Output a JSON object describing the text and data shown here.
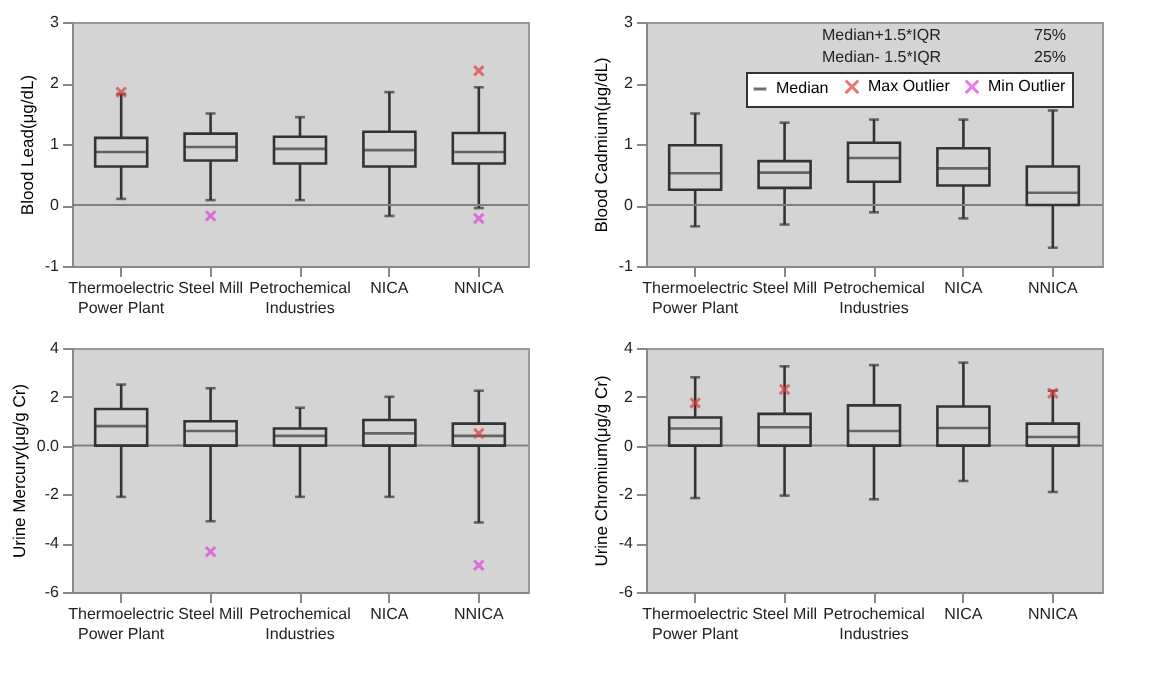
{
  "chart_data": [
    {
      "type": "box",
      "ylabel": "Blood Lead(μg/dL)",
      "categories": [
        "Thermoelectric Power Plant",
        "Steel Mill",
        "Petrochemical Industries",
        "NICA",
        "NNICA"
      ],
      "ylim": [
        -1,
        3
      ],
      "yticks": [
        -1,
        0,
        1,
        2,
        3
      ],
      "grid": false,
      "legend": false,
      "ref_lines": [
        {
          "axis": "y",
          "value": 0,
          "color": "#808080"
        }
      ],
      "series": [
        {
          "color": "#333333",
          "boxes": [
            {
              "low": 0.1,
              "q1": 0.63,
              "median": 0.87,
              "q3": 1.1,
              "high": 1.82
            },
            {
              "low": 0.08,
              "q1": 0.73,
              "median": 0.95,
              "q3": 1.17,
              "high": 1.5
            },
            {
              "low": 0.08,
              "q1": 0.68,
              "median": 0.92,
              "q3": 1.12,
              "high": 1.44
            },
            {
              "low": -0.18,
              "q1": 0.63,
              "median": 0.9,
              "q3": 1.2,
              "high": 1.85
            },
            {
              "low": -0.05,
              "q1": 0.68,
              "median": 0.87,
              "q3": 1.18,
              "high": 1.93
            }
          ]
        },
        {
          "type": "scatter",
          "marker": "cross",
          "color": "#e03c3c",
          "x": [
            "Thermoelectric Power Plant",
            "NNICA"
          ],
          "values": [
            1.85,
            2.2
          ]
        },
        {
          "type": "scatter",
          "marker": "cross",
          "color": "#e040e0",
          "x": [
            "Steel Mill",
            "NNICA"
          ],
          "values": [
            -0.18,
            -0.22
          ]
        }
      ]
    },
    {
      "type": "box",
      "ylabel": "Blood Cadmium(μg/dL)",
      "categories": [
        "Thermoelectric Power Plant",
        "Steel Mill",
        "Petrochemical Industries",
        "NICA",
        "NNICA"
      ],
      "ylim": [
        -1,
        3
      ],
      "yticks": [
        -1,
        0,
        1,
        2,
        3
      ],
      "grid": false,
      "legend": "top right",
      "ref_lines": [
        {
          "axis": "y",
          "value": 0,
          "color": "#808080"
        }
      ],
      "annotations": [
        "Median+1.5*IQR",
        "Median- 1.5*IQR",
        "75%",
        "25%"
      ],
      "series": [
        {
          "name": "Median",
          "color": "#333333",
          "boxes": [
            {
              "low": -0.35,
              "q1": 0.25,
              "median": 0.52,
              "q3": 0.98,
              "high": 1.5
            },
            {
              "low": -0.32,
              "q1": 0.28,
              "median": 0.53,
              "q3": 0.72,
              "high": 1.35
            },
            {
              "low": -0.12,
              "q1": 0.38,
              "median": 0.77,
              "q3": 1.02,
              "high": 1.4
            },
            {
              "low": -0.22,
              "q1": 0.32,
              "median": 0.6,
              "q3": 0.93,
              "high": 1.4
            },
            {
              "low": -0.7,
              "q1": 0.0,
              "median": 0.2,
              "q3": 0.63,
              "high": 1.55
            }
          ]
        },
        {
          "type": "scatter",
          "name": "Max Outlier",
          "marker": "cross",
          "color": "#e03c3c",
          "x": [
            "Thermoelectric Power Plant",
            "Steel Mill",
            "Petrochemical Industries",
            "NICA",
            "NNICA"
          ],
          "values": [
            null,
            null,
            null,
            null,
            null
          ]
        },
        {
          "type": "scatter",
          "name": "Min Outlier",
          "marker": "cross",
          "color": "#e040e0",
          "x": [
            "Thermoelectric Power Plant",
            "Steel Mill",
            "Petrochemical Industries",
            "NICA",
            "NNICA"
          ],
          "values": [
            null,
            null,
            null,
            null,
            null
          ]
        }
      ]
    },
    {
      "type": "box",
      "ylabel": "Urine Mercury(μg/g Cr)",
      "categories": [
        "Thermoelectric Power Plant",
        "Steel Mill",
        "Petrochemical Industries",
        "NICA",
        "NNICA"
      ],
      "ylim": [
        -6,
        4
      ],
      "yticks": [
        -6,
        -4,
        -2,
        {
          "value": 0,
          "label": "0.0"
        },
        2,
        4
      ],
      "grid": false,
      "legend": false,
      "ref_lines": [
        {
          "axis": "y",
          "value": 0,
          "color": "#808080"
        }
      ],
      "series": [
        {
          "color": "#333333",
          "boxes": [
            {
              "low": -2.1,
              "q1": 0,
              "median": 0.8,
              "q3": 1.5,
              "high": 2.5
            },
            {
              "low": -3.1,
              "q1": 0,
              "median": 0.6,
              "q3": 1.0,
              "high": 2.35
            },
            {
              "low": -2.1,
              "q1": 0,
              "median": 0.4,
              "q3": 0.7,
              "high": 1.55
            },
            {
              "low": -2.1,
              "q1": 0,
              "median": 0.5,
              "q3": 1.05,
              "high": 2.0
            },
            {
              "low": -3.15,
              "q1": 0,
              "median": 0.4,
              "q3": 0.9,
              "high": 2.25
            }
          ]
        },
        {
          "type": "scatter",
          "marker": "cross",
          "color": "#e03c3c",
          "x": [
            "NNICA"
          ],
          "values": [
            0.5
          ]
        },
        {
          "type": "scatter",
          "marker": "cross",
          "color": "#e040e0",
          "x": [
            "Steel Mill",
            "NNICA"
          ],
          "values": [
            -4.35,
            -4.9
          ]
        }
      ]
    },
    {
      "type": "box",
      "ylabel": "Urine Chromium(μg/g Cr)",
      "categories": [
        "Thermoelectric Power Plant",
        "Steel Mill",
        "Petrochemical Industries",
        "NICA",
        "NNICA"
      ],
      "ylim": [
        -6,
        4
      ],
      "yticks": [
        -6,
        -4,
        -2,
        0,
        2,
        4
      ],
      "grid": false,
      "legend": false,
      "ref_lines": [
        {
          "axis": "y",
          "value": 0,
          "color": "#808080"
        }
      ],
      "series": [
        {
          "color": "#333333",
          "boxes": [
            {
              "low": -2.15,
              "q1": 0,
              "median": 0.7,
              "q3": 1.15,
              "high": 2.8
            },
            {
              "low": -2.05,
              "q1": 0,
              "median": 0.75,
              "q3": 1.3,
              "high": 3.25
            },
            {
              "low": -2.2,
              "q1": 0,
              "median": 0.6,
              "q3": 1.65,
              "high": 3.3
            },
            {
              "low": -1.45,
              "q1": 0,
              "median": 0.72,
              "q3": 1.6,
              "high": 3.4
            },
            {
              "low": -1.9,
              "q1": 0,
              "median": 0.35,
              "q3": 0.9,
              "high": 2.25
            }
          ]
        },
        {
          "type": "scatter",
          "marker": "cross",
          "color": "#e03c3c",
          "x": [
            "Thermoelectric Power Plant",
            "Steel Mill",
            "NNICA"
          ],
          "values": [
            1.75,
            2.3,
            2.15
          ]
        }
      ]
    }
  ]
}
